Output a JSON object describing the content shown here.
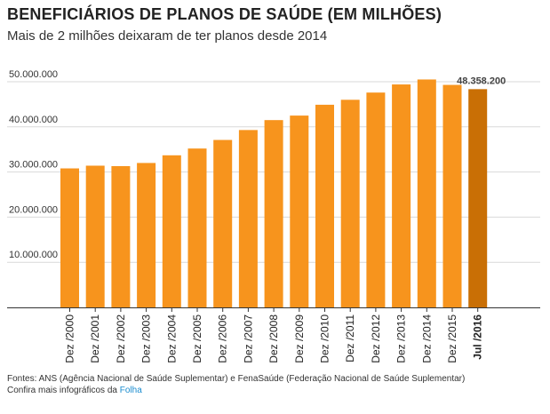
{
  "header": {
    "title": "BENEFICIÁRIOS DE PLANOS DE SAÚDE (EM MILHÕES)",
    "subtitle": "Mais de 2 milhões deixaram de ter planos desde 2014"
  },
  "footer": {
    "sources": "Fontes: ANS (Agência Nacional de Saúde Suplementar) e FenaSaúde (Federação Nacional de Saúde Suplementar)",
    "more_text": "Confira mais infográficos da",
    "brand": "Folha"
  },
  "colors": {
    "bar": "#f7941d",
    "highlight_bar": "#c96f05",
    "grid": "#d9d9d9",
    "axis": "#333333"
  },
  "chart_data": {
    "type": "bar",
    "categories": [
      "Dez /2000",
      "Dez /2001",
      "Dez /2002",
      "Dez /2003",
      "Dez /2004",
      "Dez /2005",
      "Dez /2006",
      "Dez /2007",
      "Dez /2008",
      "Dez /2009",
      "Dez /2010",
      "Dez /2011",
      "Dez /2012",
      "Dez /2013",
      "Dez /2014",
      "Dez /2015",
      "Jul /2016"
    ],
    "values": [
      30800000,
      31400000,
      31300000,
      32000000,
      33700000,
      35200000,
      37100000,
      39300000,
      41500000,
      42500000,
      44900000,
      46000000,
      47600000,
      49400000,
      50500000,
      49300000,
      48358200
    ],
    "highlight_index": 16,
    "data_labels": [
      {
        "index": 16,
        "text": "48.358.200"
      }
    ],
    "ylim": [
      0,
      50000000
    ],
    "yticks": [
      10000000,
      20000000,
      30000000,
      40000000,
      50000000
    ],
    "ytick_labels": [
      "10.000.000",
      "20.000.000",
      "30.000.000",
      "40.000.000",
      "50.000.000"
    ],
    "grid": true
  }
}
